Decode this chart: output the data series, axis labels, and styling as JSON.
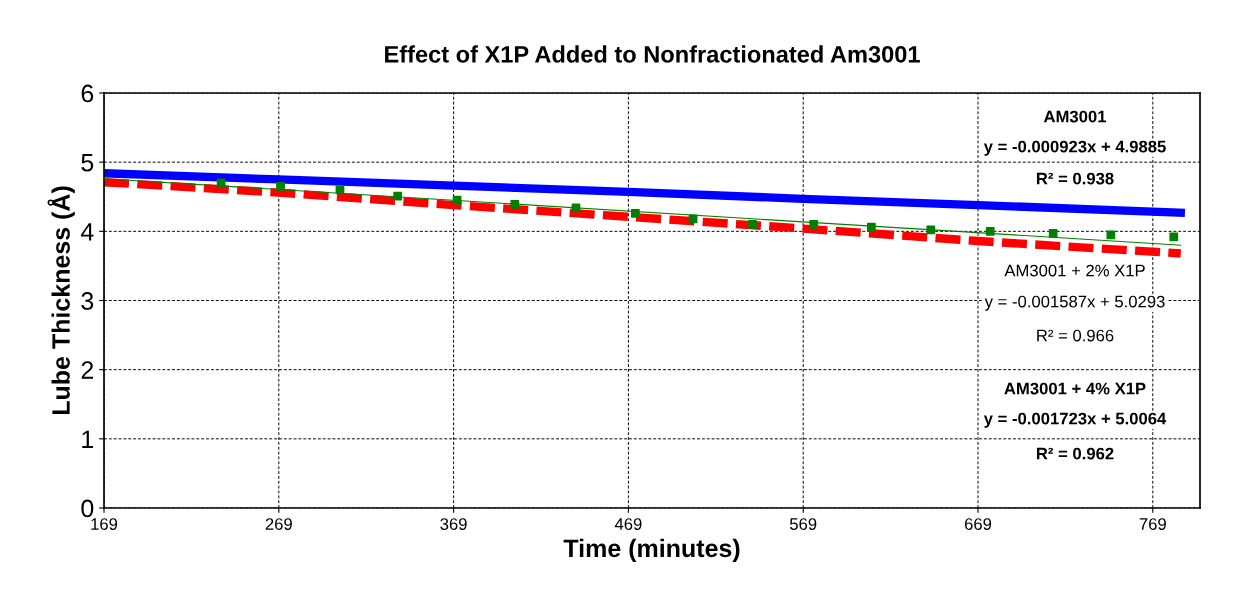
{
  "chart_data": {
    "type": "line",
    "title": "Effect of X1P Added to Nonfractionated Am3001",
    "xlabel": "Time (minutes)",
    "ylabel": "Lube Thickness (Å)",
    "xlim": [
      169,
      796
    ],
    "xticks": [
      169,
      269,
      369,
      469,
      569,
      669,
      769
    ],
    "ylim": [
      0,
      6
    ],
    "yticks": [
      0,
      1,
      2,
      3,
      4,
      5,
      6
    ],
    "grid": true,
    "series": [
      {
        "color": "#0000ff",
        "x": [
          169,
          269,
          369,
          469,
          569,
          669,
          785
        ],
        "values": [
          4.84,
          4.75,
          4.66,
          4.57,
          4.47,
          4.38,
          4.27
        ]
      },
      {
        "type": "line",
        "line_style": "dashed",
        "color": "#ff0000",
        "x": [
          169,
          269,
          369,
          469,
          569,
          669,
          785
        ],
        "values": [
          4.71,
          4.56,
          4.38,
          4.21,
          4.04,
          3.86,
          3.68
        ]
      },
      {
        "type": "scatter",
        "marker": "square",
        "color": "#008000",
        "x": [
          236,
          270,
          304,
          337,
          371,
          404,
          439,
          473,
          506,
          540,
          575,
          608,
          642,
          676,
          712,
          745,
          781
        ],
        "values": [
          4.7,
          4.65,
          4.6,
          4.51,
          4.45,
          4.39,
          4.34,
          4.26,
          4.18,
          4.1,
          4.1,
          4.06,
          4.02,
          4.0,
          3.97,
          3.95,
          3.92
        ]
      },
      {
        "type": "line",
        "color": "#008000",
        "x": [
          169,
          785
        ],
        "values": [
          4.76,
          3.8
        ]
      }
    ],
    "annotations": [
      "AM3001",
      "y = -0.000923x + 4.9885",
      "R² = 0.938",
      "AM3001 + 2% X1P",
      "y = -0.001587x + 5.0293",
      "R² = 0.966",
      "AM3001 + 4% X1P",
      "y = -0.001723x + 5.0064",
      "R² = 0.962"
    ]
  }
}
